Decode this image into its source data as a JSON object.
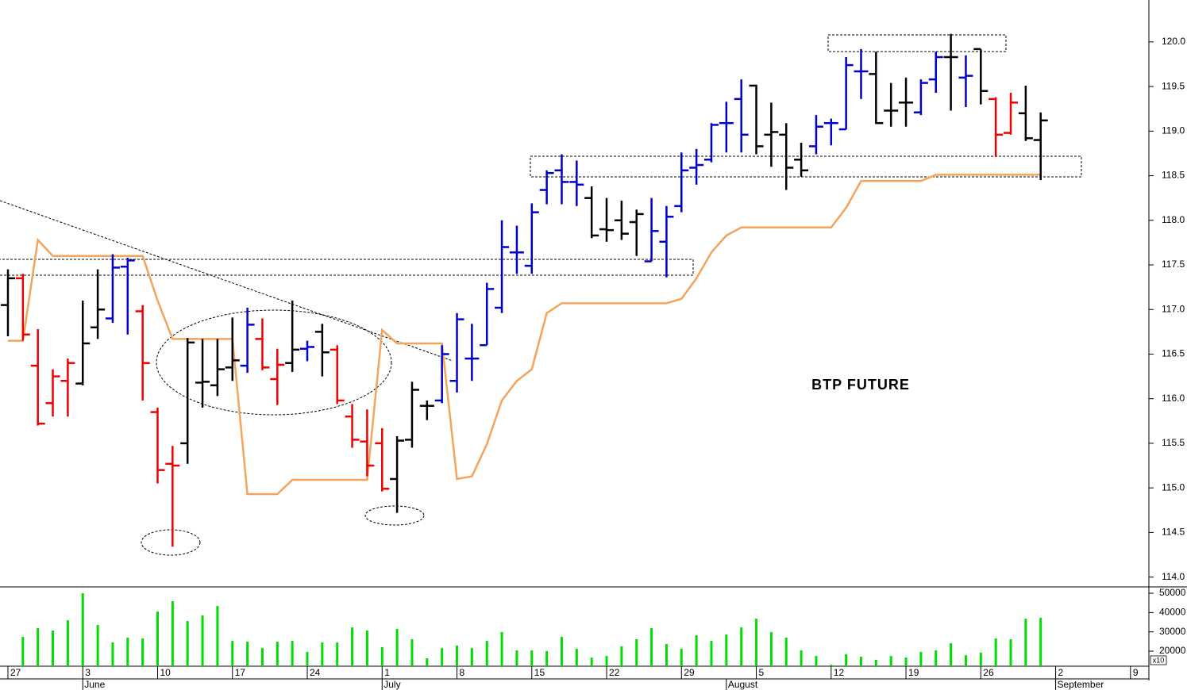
{
  "chart_data": {
    "type": "ohlc",
    "annotation": "BTP FUTURE",
    "x": [
      0,
      1,
      2,
      3,
      4,
      5,
      6,
      7,
      8,
      9,
      10,
      11,
      12,
      13,
      14,
      15,
      16,
      17,
      18,
      19,
      20,
      21,
      22,
      23,
      24,
      25,
      26,
      27,
      28,
      29,
      30,
      31,
      32,
      33,
      34,
      35,
      36,
      37,
      38,
      39,
      40,
      41,
      42,
      43,
      44,
      45,
      46,
      47,
      48,
      49,
      50,
      51,
      52,
      53,
      54,
      55,
      56,
      57,
      58,
      59,
      60,
      61,
      62,
      63,
      64,
      65,
      66,
      67,
      68,
      69
    ],
    "open": [
      117.05,
      117.35,
      116.37,
      115.95,
      116.2,
      116.17,
      116.8,
      116.9,
      117.48,
      116.98,
      115.85,
      115.27,
      115.5,
      116.18,
      116.15,
      116.35,
      116.37,
      116.67,
      116.22,
      116.4,
      116.56,
      116.75,
      116.55,
      115.8,
      115.52,
      115.5,
      115.1,
      115.54,
      115.92,
      115.98,
      116.2,
      116.45,
      116.6,
      117.02,
      117.64,
      117.49,
      118.34,
      118.56,
      118.43,
      118.25,
      117.9,
      118.0,
      117.98,
      117.54,
      117.76,
      118.16,
      118.59,
      118.68,
      119.09,
      119.36,
      119.51,
      118.96,
      118.96,
      118.68,
      118.83,
      119.09,
      119.02,
      119.67,
      119.64,
      119.23,
      119.32,
      119.21,
      119.58,
      119.83,
      119.6,
      119.92,
      119.36,
      118.98,
      119.2,
      118.9
    ],
    "high": [
      117.45,
      117.4,
      116.78,
      116.33,
      116.45,
      117.1,
      117.45,
      117.62,
      117.58,
      117.05,
      115.9,
      115.47,
      116.68,
      116.67,
      116.67,
      116.91,
      117.02,
      116.9,
      116.56,
      117.1,
      116.65,
      116.84,
      116.6,
      115.94,
      115.88,
      115.67,
      115.58,
      116.19,
      115.98,
      116.6,
      116.96,
      116.84,
      117.3,
      118.0,
      117.94,
      118.19,
      118.56,
      118.74,
      118.67,
      118.38,
      118.25,
      118.22,
      118.12,
      118.25,
      118.16,
      118.76,
      118.8,
      119.09,
      119.33,
      119.58,
      119.52,
      119.32,
      119.09,
      118.87,
      119.18,
      119.14,
      119.83,
      119.92,
      119.89,
      119.54,
      119.6,
      119.58,
      119.89,
      120.09,
      119.85,
      119.92,
      119.38,
      119.43,
      119.51,
      119.21
    ],
    "low": [
      116.7,
      116.65,
      115.7,
      115.8,
      115.8,
      116.15,
      116.67,
      116.85,
      116.72,
      115.98,
      115.05,
      114.34,
      115.27,
      115.9,
      116.03,
      116.2,
      116.29,
      116.32,
      115.93,
      116.3,
      116.42,
      116.25,
      115.94,
      115.45,
      115.13,
      114.96,
      114.72,
      115.45,
      115.76,
      115.95,
      116.07,
      116.2,
      116.6,
      116.96,
      117.4,
      117.4,
      118.18,
      118.18,
      118.16,
      117.8,
      117.76,
      117.78,
      117.6,
      117.54,
      117.36,
      118.09,
      118.4,
      118.65,
      118.76,
      118.76,
      118.74,
      118.6,
      118.34,
      118.49,
      118.74,
      118.84,
      119.02,
      119.36,
      119.08,
      119.05,
      119.05,
      119.18,
      119.43,
      119.23,
      119.27,
      119.3,
      118.71,
      118.96,
      118.89,
      118.45
    ],
    "close": [
      117.35,
      116.72,
      115.72,
      116.25,
      116.4,
      116.62,
      117.0,
      117.47,
      117.55,
      116.4,
      115.2,
      115.25,
      116.63,
      116.19,
      116.33,
      116.43,
      116.83,
      116.35,
      116.38,
      116.55,
      116.58,
      116.52,
      115.98,
      115.54,
      115.25,
      114.99,
      115.53,
      116.1,
      115.92,
      116.5,
      116.89,
      116.45,
      117.23,
      117.7,
      117.64,
      118.09,
      118.53,
      118.43,
      118.4,
      117.83,
      117.89,
      117.85,
      118.07,
      117.88,
      118.04,
      118.56,
      118.62,
      119.07,
      119.09,
      118.96,
      118.83,
      118.99,
      118.59,
      118.56,
      119.05,
      119.09,
      119.74,
      119.67,
      119.09,
      119.23,
      119.32,
      119.54,
      119.83,
      119.83,
      119.62,
      119.45,
      118.96,
      119.32,
      118.92,
      119.12
    ],
    "bar_colors": [
      "#000000",
      "#ee0000",
      "#ee0000",
      "#ee0000",
      "#ee0000",
      "#000000",
      "#000000",
      "#0000cc",
      "#0000cc",
      "#ee0000",
      "#ee0000",
      "#ee0000",
      "#000000",
      "#000000",
      "#000000",
      "#000000",
      "#0000cc",
      "#ee0000",
      "#ee0000",
      "#000000",
      "#0000cc",
      "#000000",
      "#ee0000",
      "#ee0000",
      "#ee0000",
      "#ee0000",
      "#000000",
      "#000000",
      "#000000",
      "#0000cc",
      "#0000cc",
      "#0000cc",
      "#0000cc",
      "#0000cc",
      "#0000cc",
      "#0000cc",
      "#0000cc",
      "#0000cc",
      "#0000cc",
      "#000000",
      "#000000",
      "#000000",
      "#000000",
      "#0000cc",
      "#0000cc",
      "#0000cc",
      "#0000cc",
      "#0000cc",
      "#0000cc",
      "#0000cc",
      "#000000",
      "#000000",
      "#000000",
      "#000000",
      "#0000cc",
      "#0000cc",
      "#0000cc",
      "#0000cc",
      "#000000",
      "#000000",
      "#000000",
      "#0000cc",
      "#0000cc",
      "#000000",
      "#0000cc",
      "#000000",
      "#ee0000",
      "#ee0000",
      "#000000",
      "#000000"
    ],
    "line": {
      "color": "#f5a35c",
      "values": [
        116.65,
        116.65,
        117.78,
        117.6,
        117.6,
        117.6,
        117.6,
        117.6,
        117.6,
        117.6,
        117.1,
        116.67,
        116.67,
        116.67,
        116.67,
        116.67,
        114.93,
        114.93,
        114.93,
        115.09,
        115.09,
        115.09,
        115.09,
        115.09,
        115.09,
        116.77,
        116.62,
        116.62,
        116.62,
        116.62,
        115.1,
        115.13,
        115.49,
        115.98,
        116.2,
        116.33,
        116.96,
        117.07,
        117.07,
        117.07,
        117.07,
        117.07,
        117.07,
        117.07,
        117.07,
        117.12,
        117.35,
        117.64,
        117.83,
        117.92,
        117.92,
        117.92,
        117.92,
        117.92,
        117.92,
        117.92,
        118.14,
        118.44,
        118.44,
        118.44,
        118.44,
        118.44,
        118.51,
        118.51,
        118.51,
        118.51,
        118.51,
        118.51,
        118.51,
        118.51
      ]
    },
    "volume": {
      "color": "#00dd00",
      "values": [
        null,
        27400,
        31900,
        30700,
        36000,
        50000,
        33600,
        24500,
        27000,
        26600,
        40500,
        45900,
        35600,
        38500,
        43400,
        25300,
        24900,
        21600,
        24900,
        25300,
        19600,
        24500,
        24500,
        32300,
        30700,
        22100,
        31500,
        26200,
        16300,
        21600,
        22900,
        21600,
        25300,
        29900,
        20400,
        20400,
        20000,
        27400,
        21200,
        16700,
        17500,
        22500,
        26200,
        31900,
        23700,
        21200,
        28200,
        25300,
        28600,
        32300,
        36800,
        29900,
        27000,
        20400,
        17500,
        13000,
        18400,
        17100,
        15500,
        17500,
        16700,
        19600,
        20400,
        24100,
        17900,
        19200,
        26600,
        26200,
        36800,
        37300
      ]
    },
    "volume_unit": "x10",
    "xlim": [
      -0.53,
      76.23
    ],
    "xticks": [
      {
        "value": 0,
        "label": "27"
      },
      {
        "value": 5,
        "label": "3"
      },
      {
        "value": 10,
        "label": "10"
      },
      {
        "value": 15,
        "label": "17"
      },
      {
        "value": 20,
        "label": "24"
      },
      {
        "value": 25,
        "label": "1"
      },
      {
        "value": 30,
        "label": "8"
      },
      {
        "value": 35,
        "label": "15"
      },
      {
        "value": 40,
        "label": "22"
      },
      {
        "value": 45,
        "label": "29"
      },
      {
        "value": 50,
        "label": "5"
      },
      {
        "value": 55,
        "label": "12"
      },
      {
        "value": 60,
        "label": "19"
      },
      {
        "value": 65,
        "label": "26"
      },
      {
        "value": 70,
        "label": "2"
      },
      {
        "value": 75,
        "label": "9"
      }
    ],
    "month_ticks": [
      {
        "value": 5,
        "label": "June"
      },
      {
        "value": 25,
        "label": "July"
      },
      {
        "value": 48,
        "label": "August"
      },
      {
        "value": 70,
        "label": "September"
      }
    ],
    "ylim": [
      113.89,
      120.47
    ],
    "yticks": [
      {
        "value": 114,
        "label": "114.0"
      },
      114.5,
      {
        "value": 115,
        "label": "115.0"
      },
      115.5,
      {
        "value": 116,
        "label": "116.0"
      },
      116.5,
      {
        "value": 117,
        "label": "117.0"
      },
      117.5,
      {
        "value": 118,
        "label": "118.0"
      },
      118.5,
      {
        "value": 119,
        "label": "119.0"
      },
      119.5,
      {
        "value": 120,
        "label": "120.0"
      }
    ],
    "y2lim": [
      12200,
      53300
    ],
    "y2ticks": [
      20000,
      30000,
      40000,
      50000
    ]
  }
}
